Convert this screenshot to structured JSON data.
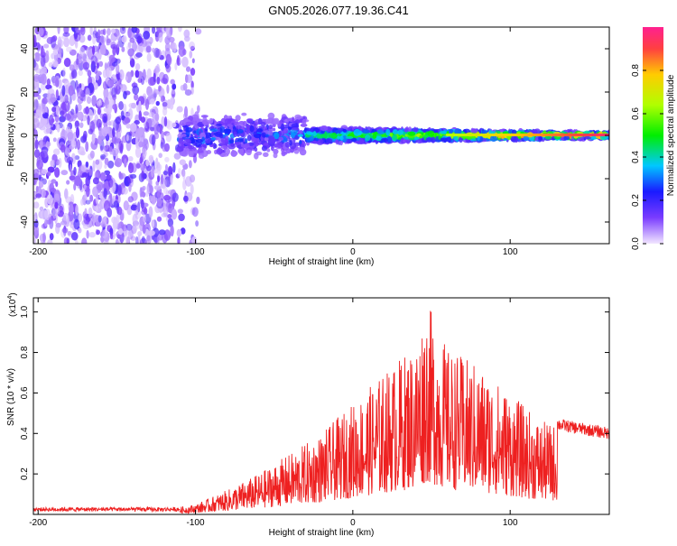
{
  "title": "GN05.2026.077.19.36.C41",
  "chart_data": [
    {
      "type": "heatmap",
      "title": "GN05.2026.077.19.36.C41",
      "xlabel": "Height of straight line (km)",
      "ylabel": "Frequency (Hz)",
      "xlim": [
        -203,
        163
      ],
      "ylim": [
        -50,
        50
      ],
      "x_ticks": [
        -200,
        -100,
        0,
        100
      ],
      "y_ticks": [
        -40,
        -20,
        0,
        20,
        40
      ],
      "colorbar": {
        "label": "Normalized spectral amplitude",
        "range": [
          0,
          1
        ],
        "ticks": [
          "0.0",
          "0.2",
          "0.4",
          "0.6",
          "0.8"
        ],
        "tick_values": [
          0,
          0.2,
          0.4,
          0.6,
          0.8
        ]
      },
      "features": {
        "noise_region_km": [
          -203,
          -110
        ],
        "burst_region_km": [
          -110,
          -30
        ],
        "line_frequency_hz": 0
      }
    },
    {
      "type": "line",
      "title": "",
      "xlabel": "Height of straight line (km)",
      "ylabel": "SNR (10 * v/v)",
      "y_multiplier": "(x10",
      "y_multiplier_exp": "4",
      "y_multiplier_close": ")",
      "xlim": [
        -203,
        163
      ],
      "ylim": [
        0,
        1.07
      ],
      "x_ticks": [
        -200,
        -100,
        0,
        100
      ],
      "y_ticks": [
        0.2,
        0.4,
        0.6,
        0.8,
        1.0
      ],
      "series": [
        {
          "name": "SNR",
          "color": "#ee2020",
          "envelope_x": [
            -203,
            -120,
            -100,
            -80,
            -60,
            -40,
            -20,
            0,
            20,
            40,
            47,
            60,
            80,
            100,
            120,
            140,
            163
          ],
          "envelope_y": [
            0.02,
            0.025,
            0.05,
            0.12,
            0.2,
            0.3,
            0.4,
            0.55,
            0.7,
            0.85,
            1.06,
            0.82,
            0.74,
            0.6,
            0.46,
            0.43,
            0.4
          ]
        }
      ]
    }
  ]
}
